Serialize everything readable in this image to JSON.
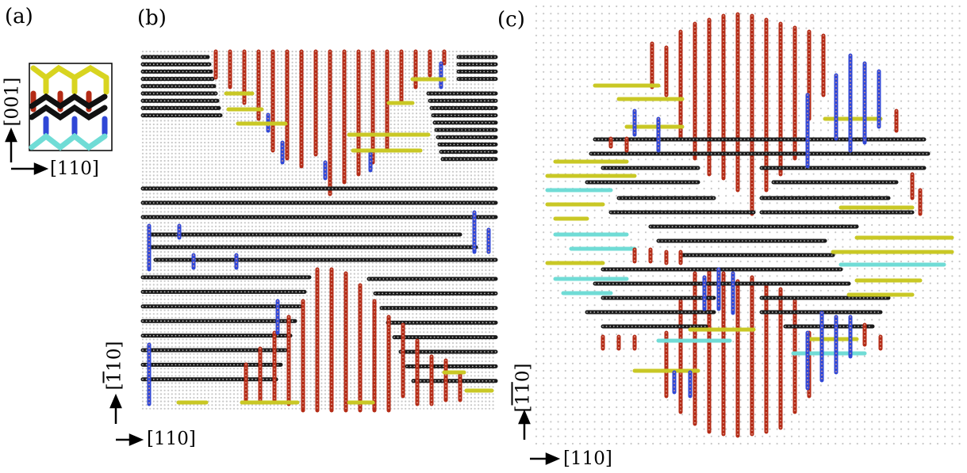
{
  "figure": {
    "panels": [
      {
        "id": "a",
        "label": "(a)"
      },
      {
        "id": "b",
        "label": "(b)"
      },
      {
        "id": "c",
        "label": "(c)"
      }
    ],
    "axes": {
      "a": {
        "vertical": "[001]",
        "horizontal": "[110]"
      },
      "b": {
        "vertical_bracket_open": "[",
        "vertical_overline_digit": "1",
        "vertical_rest": "10]",
        "horizontal": "[110]"
      },
      "c": {
        "vertical_bracket_open": "[",
        "vertical_overline_digits": "11",
        "vertical_rest": "0]",
        "horizontal": "[110]"
      }
    },
    "colors": {
      "dimer_black": "#1a1a1a",
      "dimer_red": "#b42b16",
      "dimer_blue": "#3047d6",
      "dimer_yellow": "#c9c825",
      "dimer_cyan": "#70dcd6",
      "grid_dot": "#c8c8c8",
      "frame": "#000000"
    }
  }
}
